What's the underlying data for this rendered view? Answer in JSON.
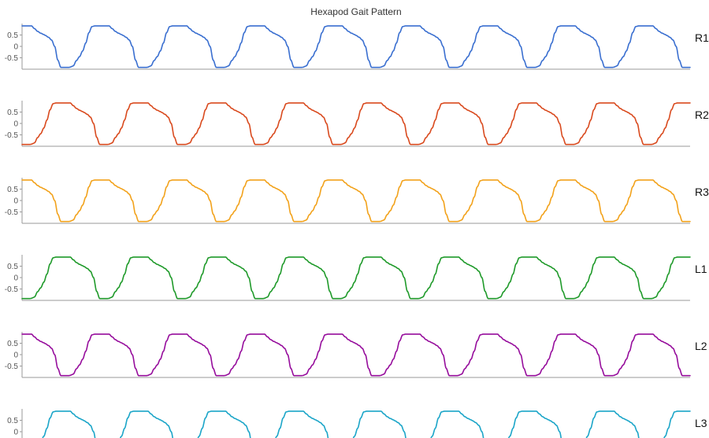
{
  "chart_data": {
    "type": "line",
    "title": "Hexapod Gait Pattern",
    "xlabel": "",
    "ylabel": "",
    "grid": false,
    "legend": "none",
    "x_range": [
      0,
      8.6
    ],
    "period": 1.0,
    "y_range": [
      -1,
      1
    ],
    "y_ticks": [
      0.5,
      0,
      -0.5
    ],
    "y_tick_labels": [
      "0.5",
      "0",
      "-0.5"
    ],
    "waveform_keypoints": {
      "phase": [
        0.0,
        0.04,
        0.08,
        0.12,
        0.16,
        0.2,
        0.24,
        0.27,
        0.28,
        0.33,
        0.38,
        0.42,
        0.46,
        0.5,
        0.54,
        0.58,
        0.6,
        0.64,
        0.68,
        0.72,
        0.76,
        0.8,
        0.84,
        0.87,
        0.9,
        0.92,
        0.94,
        0.96,
        1.0
      ],
      "value": [
        -0.62,
        -0.45,
        -0.2,
        0.15,
        0.6,
        0.87,
        0.9,
        0.9,
        0.9,
        0.9,
        0.9,
        0.9,
        0.78,
        0.66,
        0.58,
        0.52,
        0.48,
        0.4,
        0.28,
        0.0,
        -0.6,
        -0.92,
        -0.92,
        -0.92,
        -0.92,
        -0.91,
        -0.88,
        -0.85,
        -0.62
      ]
    },
    "series": [
      {
        "name": "R1",
        "color": "#3a6fd0",
        "phase_offset": 0.3
      },
      {
        "name": "R2",
        "color": "#d94a1e",
        "phase_offset": 0.8
      },
      {
        "name": "R3",
        "color": "#f2a21b",
        "phase_offset": 0.3
      },
      {
        "name": "L1",
        "color": "#1f9a2a",
        "phase_offset": 0.8
      },
      {
        "name": "L2",
        "color": "#960d9c",
        "phase_offset": 0.3
      },
      {
        "name": "L3",
        "color": "#1ba5c8",
        "phase_offset": 0.8
      }
    ]
  }
}
